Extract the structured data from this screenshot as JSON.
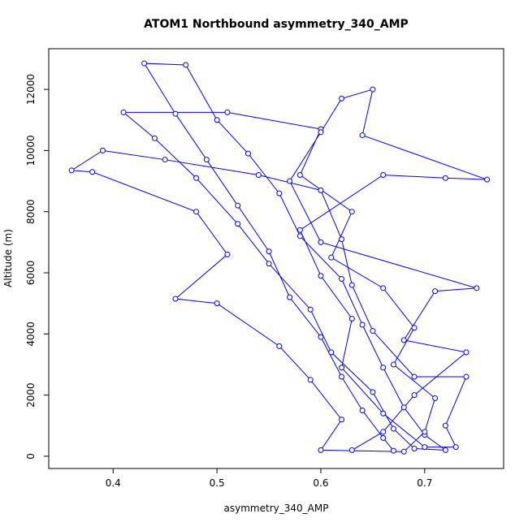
{
  "chart_data": {
    "type": "line",
    "title": "ATOM1 Northbound asymmetry_340_AMP",
    "x_label": "asymmetry_340_AMP",
    "y_label": "Altitude (m)",
    "color": "#0000ff",
    "xlim": [
      0.338,
      0.776
    ],
    "ylim": [
      -400,
      13330
    ],
    "xticks": [
      0.4,
      0.5,
      0.6,
      0.7
    ],
    "yticks": [
      0,
      2000,
      4000,
      6000,
      8000,
      10000,
      12000
    ],
    "x": [
      0.67,
      0.66,
      0.64,
      0.62,
      0.6,
      0.57,
      0.55,
      0.52,
      0.49,
      0.46,
      0.43,
      0.47,
      0.5,
      0.53,
      0.56,
      0.58,
      0.62,
      0.64,
      0.66,
      0.68,
      0.7,
      0.72,
      0.69,
      0.67,
      0.65,
      0.61,
      0.59,
      0.55,
      0.52,
      0.48,
      0.44,
      0.41,
      0.51,
      0.6,
      0.58,
      0.63,
      0.61,
      0.66,
      0.69,
      0.67,
      0.71,
      0.7,
      0.68,
      0.6,
      0.62,
      0.59,
      0.56,
      0.5,
      0.46,
      0.51,
      0.48,
      0.38,
      0.36,
      0.39,
      0.45,
      0.54,
      0.6,
      0.62,
      0.63,
      0.65,
      0.69,
      0.74,
      0.72,
      0.73,
      0.7,
      0.66,
      0.62,
      0.63,
      0.6,
      0.58,
      0.66,
      0.72,
      0.76,
      0.64,
      0.65,
      0.62,
      0.6,
      0.57,
      0.6,
      0.75,
      0.71,
      0.68,
      0.74,
      0.69,
      0.66,
      0.63
    ],
    "values": [
      180,
      600,
      1500,
      2600,
      3900,
      5200,
      6700,
      8200,
      9700,
      11200,
      12850,
      12800,
      11000,
      9900,
      8600,
      7200,
      5800,
      4300,
      2900,
      1600,
      700,
      200,
      250,
      900,
      2100,
      3400,
      4800,
      6300,
      7600,
      9100,
      10400,
      11250,
      11250,
      10700,
      9200,
      8000,
      6500,
      5500,
      4200,
      3000,
      1900,
      800,
      150,
      200,
      1200,
      2500,
      3600,
      5000,
      5150,
      6600,
      8000,
      9300,
      9350,
      10000,
      9700,
      9200,
      8700,
      7100,
      5600,
      4100,
      2600,
      2600,
      1000,
      300,
      300,
      1400,
      2900,
      4500,
      5900,
      7400,
      9200,
      9100,
      9050,
      10500,
      12000,
      11700,
      10600,
      9000,
      7000,
      5500,
      5400,
      3800,
      3400,
      2000,
      800,
      200
    ]
  }
}
